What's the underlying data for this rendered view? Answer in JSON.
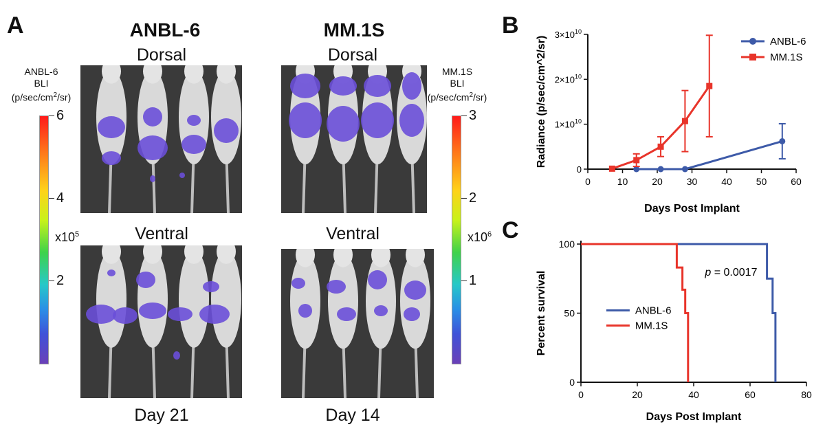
{
  "panel_labels": {
    "a": "A",
    "b": "B",
    "c": "C"
  },
  "panel_a": {
    "columns": [
      {
        "title": "ANBL-6",
        "dorsal": "Dorsal",
        "ventral": "Ventral",
        "day": "Day 21"
      },
      {
        "title": "MM.1S",
        "dorsal": "Dorsal",
        "ventral": "Ventral",
        "day": "Day 14"
      }
    ],
    "left_scale": {
      "line1": "ANBL-6",
      "line2": "BLI",
      "line3": "(p/sec/cm",
      "sup": "2",
      "line3b": "/sr)",
      "ticks": [
        "6",
        "4",
        "2"
      ],
      "multiplier": "x10",
      "exponent": "5"
    },
    "right_scale": {
      "line1": "MM.1S",
      "line2": "BLI",
      "line3": "(p/sec/cm",
      "sup": "2",
      "line3b": "/sr)",
      "ticks": [
        "3",
        "2",
        "1"
      ],
      "multiplier": "x10",
      "exponent": "6"
    }
  },
  "colors": {
    "anbl6": "#3d5aa8",
    "mm1s": "#e8342a",
    "signal": "#6a4fd8"
  },
  "chart_data": [
    {
      "type": "line",
      "panel": "B",
      "xlabel": "Days Post Implant",
      "ylabel": "Radiance (p/sec/cm^2/sr)",
      "xlim": [
        0,
        60
      ],
      "ylim": [
        0,
        30000000000
      ],
      "xticks": [
        0,
        10,
        20,
        30,
        40,
        50,
        60
      ],
      "yticks": [
        {
          "value": 0,
          "base": "0",
          "exp": ""
        },
        {
          "value": 10000000000,
          "base": "1×10",
          "exp": "10"
        },
        {
          "value": 20000000000,
          "base": "2×10",
          "exp": "10"
        },
        {
          "value": 30000000000,
          "base": "3×10",
          "exp": "10"
        }
      ],
      "legend_position": "top-right",
      "series": [
        {
          "name": "ANBL-6",
          "marker": "circle",
          "x": [
            14,
            21,
            28,
            56
          ],
          "y": [
            0,
            0,
            0,
            6200000000
          ],
          "err": [
            0,
            0,
            0,
            3900000000
          ]
        },
        {
          "name": "MM.1S",
          "marker": "square",
          "x": [
            7,
            14,
            21,
            28,
            35
          ],
          "y": [
            100000000,
            2000000000,
            5000000000,
            10700000000,
            18500000000
          ],
          "err": [
            0,
            1400000000,
            2200000000,
            6800000000,
            11300000000
          ]
        }
      ]
    },
    {
      "type": "line",
      "panel": "C",
      "xlabel": "Days Post Implant",
      "ylabel": "Percent survival",
      "xlim": [
        0,
        80
      ],
      "ylim": [
        0,
        100
      ],
      "xticks": [
        0,
        20,
        40,
        60,
        80
      ],
      "yticks": [
        0,
        50,
        100
      ],
      "annotation": {
        "italic": "p",
        "text": " = 0.0017"
      },
      "legend_position": "bottom-left",
      "series": [
        {
          "name": "ANBL-6",
          "step": true,
          "x": [
            0,
            66,
            66,
            68,
            68,
            69,
            69
          ],
          "y": [
            100,
            100,
            75,
            75,
            50,
            50,
            0
          ]
        },
        {
          "name": "MM.1S",
          "step": true,
          "x": [
            0,
            34,
            34,
            36,
            36,
            37,
            37,
            38,
            38
          ],
          "y": [
            100,
            100,
            83,
            83,
            67,
            67,
            50,
            50,
            0
          ]
        }
      ]
    }
  ]
}
